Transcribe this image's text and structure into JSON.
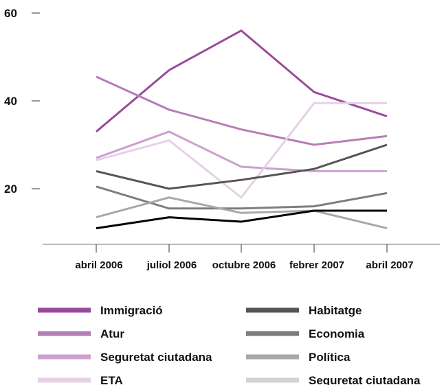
{
  "chart_data": {
    "type": "line",
    "categories": [
      "abril 2006",
      "juliol 2006",
      "octubre 2006",
      "febrer 2007",
      "abril 2007"
    ],
    "y_ticks": [
      20,
      40,
      60
    ],
    "ylim": [
      7,
      60
    ],
    "grid": false,
    "legend_position": "bottom",
    "series": [
      {
        "name": "Immigració",
        "color": "#9a4a9a",
        "values": [
          33,
          47,
          56,
          42,
          36.5
        ]
      },
      {
        "name": "Atur",
        "color": "#b57db5",
        "values": [
          45.5,
          38,
          33.5,
          30,
          32
        ]
      },
      {
        "name": "Seguretat ciutadana",
        "color": "#cda0cd",
        "values": [
          27,
          33,
          25,
          24,
          24
        ]
      },
      {
        "name": "ETA",
        "color": "#e6d0e6",
        "values": [
          26.5,
          31,
          18,
          39.5,
          39.5
        ]
      },
      {
        "name": "Habitatge",
        "color": "#555555",
        "values": [
          24,
          20,
          22,
          24.5,
          30
        ]
      },
      {
        "name": "Economia",
        "color": "#7d7d7d",
        "values": [
          20.5,
          15.5,
          15.5,
          16,
          19
        ]
      },
      {
        "name": "Política",
        "color": "#a8a8a8",
        "values": [
          13.5,
          18,
          14.5,
          15,
          11
        ]
      },
      {
        "name": "Seguretat ciutadana",
        "color": "#d2d2d2",
        "values": [
          null,
          null,
          null,
          null,
          null
        ]
      },
      {
        "name": "",
        "color": "#000000",
        "values": [
          11,
          13.5,
          12.5,
          15,
          15
        ]
      }
    ]
  }
}
